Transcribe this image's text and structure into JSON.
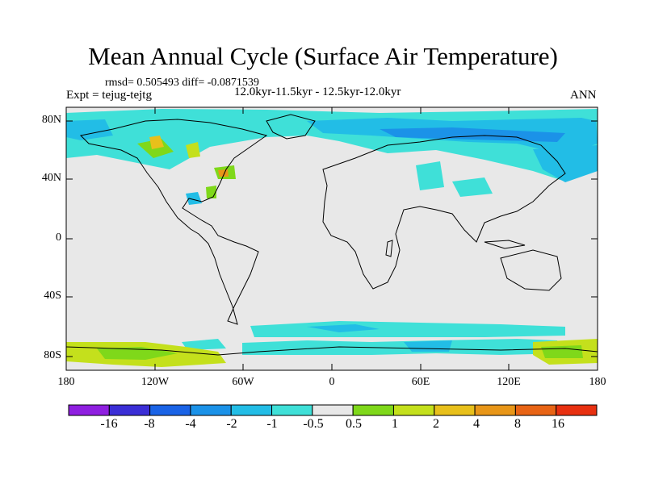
{
  "title": "Mean Annual Cycle (Surface Air Temperature)",
  "stats": "rmsd= 0.505493 diff= -0.0871539",
  "experiment": "Expt = tejug-tejtg",
  "period": "12.0kyr-11.5kyr - 12.5kyr-12.0kyr",
  "season": "ANN",
  "map": {
    "lat_range": [
      -90,
      90
    ],
    "lon_range": [
      -180,
      180
    ],
    "lat_ticks": [
      "80N",
      "40N",
      "0",
      "40S",
      "80S"
    ],
    "lon_ticks": [
      "180",
      "120W",
      "60W",
      "0",
      "60E",
      "120E",
      "180"
    ],
    "background_color": "#e8e8e8",
    "coastline_color": "#000000"
  },
  "colorbar": {
    "colors": [
      "#8f1fe0",
      "#3b2ed6",
      "#1a63e6",
      "#1b92e8",
      "#22bde6",
      "#3fe0d8",
      "#e8e8e8",
      "#7fd81a",
      "#c4e01c",
      "#e8c01b",
      "#e89618",
      "#e86415",
      "#e83010"
    ],
    "labels": [
      "-16",
      "-8",
      "-4",
      "-2",
      "-1",
      "-0.5",
      "0.5",
      "1",
      "2",
      "4",
      "8",
      "16"
    ]
  }
}
